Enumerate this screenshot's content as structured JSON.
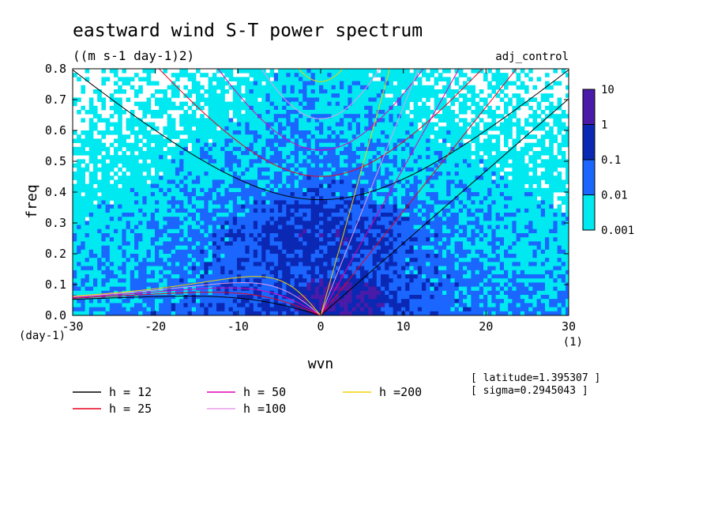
{
  "chart_data": {
    "type": "heatmap",
    "title": "eastward wind S-T power spectrum",
    "subtitle": "((m s-1 day-1)2)",
    "experiment_label": "adj_control",
    "xlabel": "wvn",
    "ylabel": "freq",
    "x_unit": "(1)",
    "y_unit": "(day-1)",
    "xlim": [
      -30,
      30
    ],
    "ylim": [
      0,
      0.8
    ],
    "x_ticks": [
      {
        "v": -30,
        "label": "-30"
      },
      {
        "v": -20,
        "label": "-20"
      },
      {
        "v": -10,
        "label": "-10"
      },
      {
        "v": 0,
        "label": "0"
      },
      {
        "v": 10,
        "label": "10"
      },
      {
        "v": 20,
        "label": "20"
      },
      {
        "v": 30,
        "label": "30"
      }
    ],
    "y_ticks": [
      {
        "v": 0,
        "label": "0.0"
      },
      {
        "v": 0.1,
        "label": "0.1"
      },
      {
        "v": 0.2,
        "label": "0.2"
      },
      {
        "v": 0.3,
        "label": "0.3"
      },
      {
        "v": 0.4,
        "label": "0.4"
      },
      {
        "v": 0.5,
        "label": "0.5"
      },
      {
        "v": 0.6,
        "label": "0.6"
      },
      {
        "v": 0.7,
        "label": "0.7"
      },
      {
        "v": 0.8,
        "label": "0.8"
      }
    ],
    "colorbar": {
      "scale": "log",
      "levels": [
        {
          "from": 0.001,
          "to": 0.01,
          "color": "#00e8f0"
        },
        {
          "from": 0.01,
          "to": 0.1,
          "color": "#1a66ff"
        },
        {
          "from": 0.1,
          "to": 1,
          "color": "#0a28b4"
        },
        {
          "from": 1,
          "to": 10,
          "color": "#4a1aa8"
        }
      ],
      "labels": [
        "10",
        "1",
        "0.1",
        "0.01",
        "0.001"
      ]
    },
    "dispersion_curves": [
      {
        "label": "h = 12",
        "h": 12,
        "color": "#000000"
      },
      {
        "label": "h = 25",
        "h": 25,
        "color": "#e8001e"
      },
      {
        "label": "h = 50",
        "h": 50,
        "color": "#e000b4"
      },
      {
        "label": "h =100",
        "h": 100,
        "color": "#e89ce8"
      },
      {
        "label": "h =200",
        "h": 200,
        "color": "#f0d200"
      }
    ],
    "annotations": [
      "[ latitude=1.395307 ]",
      "[ sigma=0.2945043 ]"
    ]
  }
}
